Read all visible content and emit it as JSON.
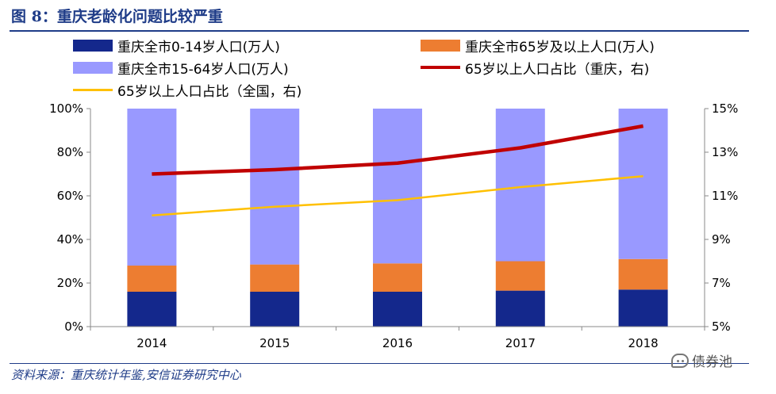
{
  "figure": {
    "title": "图 8：重庆老龄化问题比较严重",
    "source": "资料来源：重庆统计年鉴,安信证券研究中心",
    "watermark": "债券池"
  },
  "legend": [
    {
      "label": "重庆全市0-14岁人口(万人)",
      "color": "#14288c",
      "kind": "box"
    },
    {
      "label": "重庆全市65岁及以上人口(万人)",
      "color": "#ed7d31",
      "kind": "box"
    },
    {
      "label": "重庆全市15-64岁人口(万人)",
      "color": "#9999ff",
      "kind": "box"
    },
    {
      "label": "65岁以上人口占比（重庆，右)",
      "color": "#c00000",
      "kind": "line"
    },
    {
      "label": "65岁以上人口占比（全国，右)",
      "color": "#ffc000",
      "kind": "line"
    }
  ],
  "chart_data": {
    "type": "bar",
    "stacked": "percent",
    "categories": [
      "2014",
      "2015",
      "2016",
      "2017",
      "2018"
    ],
    "series": [
      {
        "name": "重庆全市0-14岁人口(万人)",
        "color": "#14288c",
        "values": [
          16,
          16,
          16,
          16.5,
          17
        ]
      },
      {
        "name": "重庆全市65岁及以上人口(万人)",
        "color": "#ed7d31",
        "values": [
          12,
          12.5,
          13,
          13.5,
          14
        ]
      },
      {
        "name": "重庆全市15-64岁人口(万人)",
        "color": "#9999ff",
        "values": [
          72,
          71.5,
          71,
          70,
          69
        ]
      }
    ],
    "line_series": [
      {
        "name": "65岁以上人口占比（重庆，右)",
        "color": "#c00000",
        "axis": "right",
        "values": [
          12.0,
          12.2,
          12.5,
          13.2,
          14.2
        ]
      },
      {
        "name": "65岁以上人口占比（全国，右)",
        "color": "#ffc000",
        "axis": "right",
        "values": [
          10.1,
          10.5,
          10.8,
          11.4,
          11.9
        ]
      }
    ],
    "y_left": {
      "min": 0,
      "max": 100,
      "ticks": [
        "0%",
        "20%",
        "40%",
        "60%",
        "80%",
        "100%"
      ]
    },
    "y_right": {
      "min": 5,
      "max": 15,
      "ticks": [
        "5%",
        "7%",
        "9%",
        "11%",
        "13%",
        "15%"
      ]
    }
  }
}
